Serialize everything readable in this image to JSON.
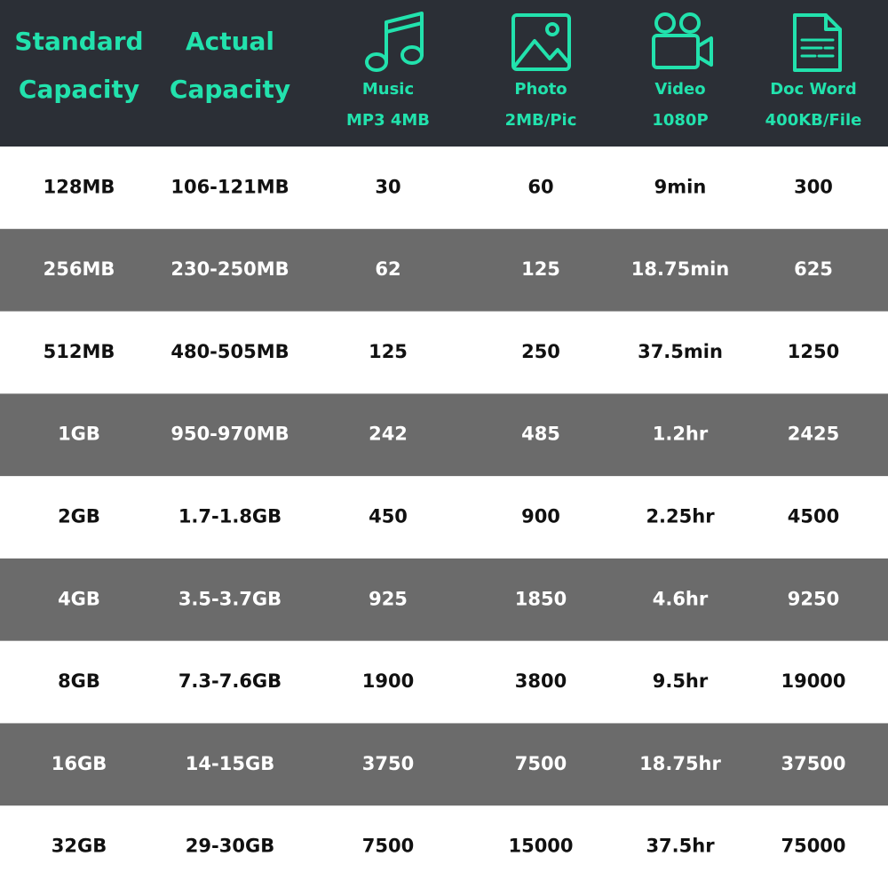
{
  "header": {
    "columns": [
      [
        "Standard",
        "Capacity"
      ],
      [
        "Actual",
        "Capacity"
      ],
      [
        "Music",
        "MP3 4MB"
      ],
      [
        "Photo",
        "2MB/Pic"
      ],
      [
        "Video",
        "1080P"
      ],
      [
        "Doc Word",
        "400KB/File"
      ]
    ]
  },
  "table": {
    "rows": [
      [
        "128MB",
        "106-121MB",
        "30",
        "60",
        "9min",
        "300"
      ],
      [
        "256MB",
        "230-250MB",
        "62",
        "125",
        "18.75min",
        "625"
      ],
      [
        "512MB",
        "480-505MB",
        "125",
        "250",
        "37.5min",
        "1250"
      ],
      [
        "1GB",
        "950-970MB",
        "242",
        "485",
        "1.2hr",
        "2425"
      ],
      [
        "2GB",
        "1.7-1.8GB",
        "450",
        "900",
        "2.25hr",
        "4500"
      ],
      [
        "4GB",
        "3.5-3.7GB",
        "925",
        "1850",
        "4.6hr",
        "9250"
      ],
      [
        "8GB",
        "7.3-7.6GB",
        "1900",
        "3800",
        "9.5hr",
        "19000"
      ],
      [
        "16GB",
        "14-15GB",
        "3750",
        "7500",
        "18.75hr",
        "37500"
      ],
      [
        "32GB",
        "29-30GB",
        "7500",
        "15000",
        "37.5hr",
        "75000"
      ]
    ]
  }
}
